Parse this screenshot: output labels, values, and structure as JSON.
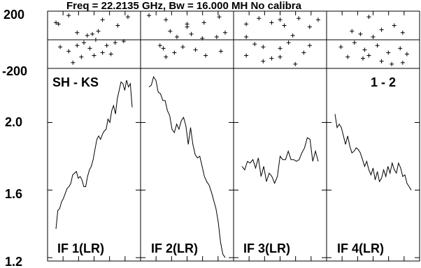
{
  "header": {
    "title": "Freq = 22.2135 GHz, Bw = 16.000 MH  No calibra",
    "baseline_label": "SH - KS",
    "pol_label": "1 - 2"
  },
  "phase_axis": {
    "ticks": [
      "200",
      "-200"
    ]
  },
  "amp_axis": {
    "ticks": [
      "2.0",
      "1.6",
      "1.2"
    ]
  },
  "colors": {
    "line": "#000000",
    "background": "#ffffff"
  },
  "chart_data": [
    {
      "type": "scatter",
      "panel": "phase",
      "ylim": [
        -200,
        200
      ],
      "series": [
        {
          "if": "IF 1(LR)",
          "points": [
            [
              0.05,
              120
            ],
            [
              0.08,
              110
            ],
            [
              0.2,
              170
            ],
            [
              0.6,
              140
            ],
            [
              0.78,
              100
            ],
            [
              0.9,
              160
            ],
            [
              0.3,
              50
            ],
            [
              0.42,
              30
            ],
            [
              0.48,
              40
            ],
            [
              0.55,
              60
            ],
            [
              0.52,
              0
            ],
            [
              0.65,
              -40
            ],
            [
              0.75,
              -20
            ],
            [
              0.85,
              -10
            ],
            [
              0.1,
              -50
            ],
            [
              0.2,
              -80
            ],
            [
              0.3,
              -40
            ],
            [
              0.38,
              -20
            ],
            [
              0.45,
              -60
            ],
            [
              0.6,
              -90
            ],
            [
              0.7,
              -100
            ],
            [
              0.25,
              -160
            ],
            [
              0.35,
              -120
            ],
            [
              0.5,
              -110
            ]
          ]
        },
        {
          "if": "IF 2(LR)",
          "points": [
            [
              0.05,
              170
            ],
            [
              0.25,
              140
            ],
            [
              0.5,
              110
            ],
            [
              0.7,
              120
            ],
            [
              0.88,
              160
            ],
            [
              0.3,
              60
            ],
            [
              0.38,
              20
            ],
            [
              0.5,
              90
            ],
            [
              0.55,
              40
            ],
            [
              0.68,
              10
            ],
            [
              0.85,
              20
            ],
            [
              0.95,
              50
            ],
            [
              0.18,
              -40
            ],
            [
              0.22,
              -60
            ],
            [
              0.35,
              -90
            ],
            [
              0.45,
              -50
            ],
            [
              0.6,
              -70
            ],
            [
              0.72,
              -110
            ],
            [
              0.9,
              -80
            ],
            [
              0.25,
              -120
            ]
          ]
        },
        {
          "if": "IF 3(LR)",
          "points": [
            [
              0.1,
              110
            ],
            [
              0.25,
              150
            ],
            [
              0.4,
              120
            ],
            [
              0.5,
              140
            ],
            [
              0.55,
              100
            ],
            [
              0.65,
              30
            ],
            [
              0.72,
              150
            ],
            [
              0.85,
              90
            ],
            [
              0.95,
              140
            ],
            [
              0.1,
              20
            ],
            [
              0.2,
              -30
            ],
            [
              0.3,
              -50
            ],
            [
              0.5,
              -60
            ],
            [
              0.6,
              -20
            ],
            [
              0.78,
              -90
            ],
            [
              0.85,
              -40
            ],
            [
              0.1,
              -110
            ],
            [
              0.3,
              -150
            ],
            [
              0.4,
              -130
            ],
            [
              0.68,
              -170
            ],
            [
              0.5,
              -120
            ]
          ]
        },
        {
          "if": "IF 4(LR)",
          "points": [
            [
              0.45,
              160
            ],
            [
              0.25,
              60
            ],
            [
              0.35,
              40
            ],
            [
              0.5,
              20
            ],
            [
              0.6,
              70
            ],
            [
              0.75,
              100
            ],
            [
              0.85,
              50
            ],
            [
              0.12,
              -50
            ],
            [
              0.28,
              -20
            ],
            [
              0.4,
              -70
            ],
            [
              0.55,
              -40
            ],
            [
              0.68,
              -90
            ],
            [
              0.82,
              -60
            ],
            [
              0.9,
              -100
            ],
            [
              0.2,
              -120
            ],
            [
              0.38,
              -130
            ],
            [
              0.45,
              -110
            ],
            [
              0.6,
              -150
            ],
            [
              0.72,
              -170
            ],
            [
              0.85,
              -160
            ]
          ]
        }
      ]
    },
    {
      "type": "line",
      "panel": "amplitude",
      "ylim": [
        1.18,
        2.32
      ],
      "yticks": [
        1.2,
        1.6,
        2.0
      ],
      "series": [
        {
          "name": "IF 1(LR)",
          "values": [
            1.37,
            1.48,
            1.49,
            1.53,
            1.55,
            1.58,
            1.61,
            1.62,
            1.64,
            1.69,
            1.7,
            1.71,
            1.67,
            1.68,
            1.66,
            1.62,
            1.62,
            1.68,
            1.72,
            1.74,
            1.78,
            1.84,
            1.9,
            1.92,
            1.9,
            1.93,
            1.95,
            1.96,
            2.02,
            2.0,
            2.07,
            2.1,
            2.05,
            2.14,
            2.19,
            2.24,
            2.23,
            2.19,
            2.25,
            2.21,
            2.23,
            2.09
          ]
        },
        {
          "name": "IF 2(LR)",
          "values": [
            2.21,
            2.22,
            2.27,
            2.25,
            2.18,
            2.17,
            2.13,
            2.13,
            2.07,
            2.04,
            1.96,
            1.94,
            1.99,
            1.96,
            2.01,
            2.03,
            1.98,
            1.87,
            1.97,
            1.87,
            1.81,
            1.79,
            1.8,
            1.74,
            1.68,
            1.65,
            1.63,
            1.59,
            1.54,
            1.49,
            1.41,
            1.29,
            1.22,
            1.2
          ]
        },
        {
          "name": "IF 3(LR)",
          "values": [
            1.74,
            1.72,
            1.77,
            1.76,
            1.78,
            1.73,
            1.79,
            1.68,
            1.74,
            1.65,
            1.7,
            1.68,
            1.64,
            1.68,
            1.8,
            1.78,
            1.78,
            1.83,
            1.78,
            1.78,
            1.77,
            1.78,
            1.82,
            1.85,
            1.91,
            1.9,
            1.77,
            1.83,
            1.77
          ]
        },
        {
          "name": "IF 4(LR)",
          "values": [
            2.05,
            1.97,
            1.99,
            1.97,
            1.92,
            1.87,
            1.92,
            1.86,
            1.82,
            1.83,
            1.85,
            1.84,
            1.82,
            1.78,
            1.74,
            1.77,
            1.72,
            1.69,
            1.73,
            1.66,
            1.71,
            1.65,
            1.67,
            1.72,
            1.68,
            1.74,
            1.7,
            1.76,
            1.72,
            1.7,
            1.76,
            1.73,
            1.68,
            1.69,
            1.64,
            1.62,
            1.6
          ]
        }
      ]
    }
  ]
}
